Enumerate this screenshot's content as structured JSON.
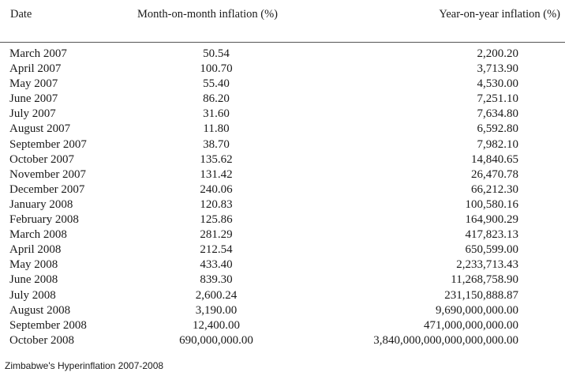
{
  "table": {
    "headers": {
      "date": "Date",
      "mom": "Month-on-month inflation (%)",
      "yoy": "Year-on-year inflation (%)"
    },
    "rows": [
      {
        "date": "March 2007",
        "mom": "50.54",
        "yoy": "2,200.20"
      },
      {
        "date": "April 2007",
        "mom": "100.70",
        "yoy": "3,713.90"
      },
      {
        "date": "May 2007",
        "mom": "55.40",
        "yoy": "4,530.00"
      },
      {
        "date": "June 2007",
        "mom": "86.20",
        "yoy": "7,251.10"
      },
      {
        "date": "July 2007",
        "mom": "31.60",
        "yoy": "7,634.80"
      },
      {
        "date": "August 2007",
        "mom": "11.80",
        "yoy": "6,592.80"
      },
      {
        "date": "September 2007",
        "mom": "38.70",
        "yoy": "7,982.10"
      },
      {
        "date": "October 2007",
        "mom": "135.62",
        "yoy": "14,840.65"
      },
      {
        "date": "November 2007",
        "mom": "131.42",
        "yoy": "26,470.78"
      },
      {
        "date": "December 2007",
        "mom": "240.06",
        "yoy": "66,212.30"
      },
      {
        "date": "January 2008",
        "mom": "120.83",
        "yoy": "100,580.16"
      },
      {
        "date": "February 2008",
        "mom": "125.86",
        "yoy": "164,900.29"
      },
      {
        "date": "March 2008",
        "mom": "281.29",
        "yoy": "417,823.13"
      },
      {
        "date": "April 2008",
        "mom": "212.54",
        "yoy": "650,599.00"
      },
      {
        "date": "May 2008",
        "mom": "433.40",
        "yoy": "2,233,713.43"
      },
      {
        "date": "June 2008",
        "mom": "839.30",
        "yoy": "11,268,758.90"
      },
      {
        "date": "July 2008",
        "mom": "2,600.24",
        "yoy": "231,150,888.87"
      },
      {
        "date": "August 2008",
        "mom": "3,190.00",
        "yoy": "9,690,000,000.00"
      },
      {
        "date": "September 2008",
        "mom": "12,400.00",
        "yoy": "471,000,000,000.00"
      },
      {
        "date": "October 2008",
        "mom": "690,000,000.00",
        "yoy": "3,840,000,000,000,000,000.00"
      }
    ]
  },
  "caption": "Zimbabwe's Hyperinflation 2007-2008"
}
